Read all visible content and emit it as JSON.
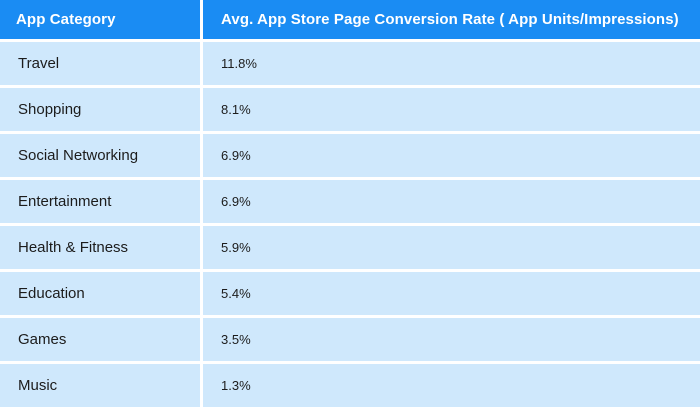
{
  "chart_data": {
    "type": "table",
    "columns": [
      "App Category",
      "Avg. App Store Page Conversion Rate ( App Units/Impressions)"
    ],
    "rows": [
      {
        "category": "Travel",
        "value": "11.8%"
      },
      {
        "category": "Shopping",
        "value": "8.1%"
      },
      {
        "category": "Social Networking",
        "value": "6.9%"
      },
      {
        "category": "Entertainment",
        "value": "6.9%"
      },
      {
        "category": "Health & Fitness",
        "value": "5.9%"
      },
      {
        "category": "Education",
        "value": "5.4%"
      },
      {
        "category": "Games",
        "value": "3.5%"
      },
      {
        "category": "Music",
        "value": "1.3%"
      }
    ]
  },
  "colors": {
    "header_bg": "#1a8cf3",
    "header_text": "#ffffff",
    "row_bg": "#cfe8fc",
    "row_text": "#1c1c1c",
    "divider": "#ffffff"
  }
}
